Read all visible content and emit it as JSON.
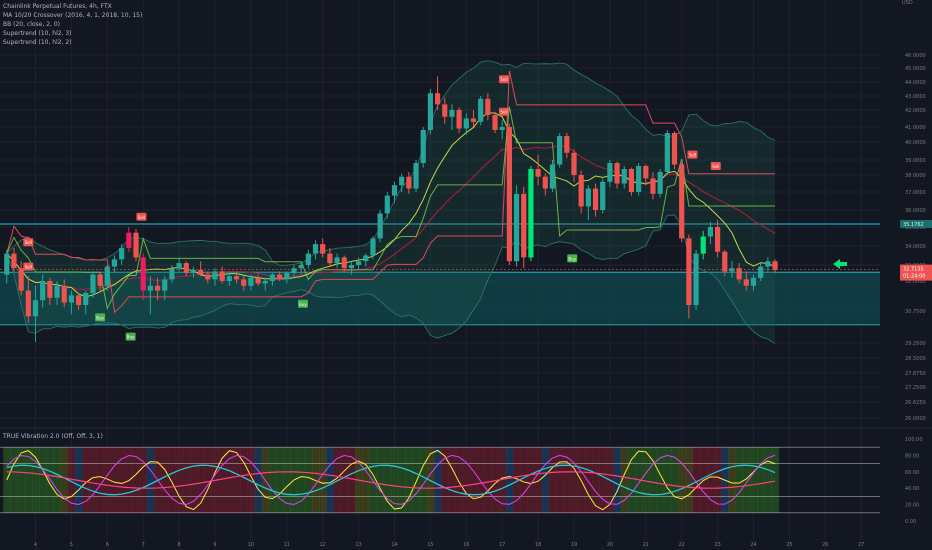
{
  "legend": {
    "symbol": "Chainlink Perpetual Futures, 4h, FTX",
    "lines": [
      "MA 10/20 Crossover (2016, 4, 1, 2018, 10, 15)",
      "BB (20, close, 2, 0)",
      "Supertrend (10, hl2, 3)",
      "Supertrend (10, hl2, 2)"
    ],
    "osc": "TRUE Vibration 2.0 (Off, Off, 3, 1)"
  },
  "currency": "USD",
  "colors": {
    "background": "#131722",
    "up": "#26a69a",
    "down": "#ef5350",
    "signal_green": "#00e676",
    "signal_magenta": "#e91e63",
    "zone": "#0f4a4e",
    "zone_line": "#26c6da",
    "arrow": "#00e676"
  },
  "chart_data": [
    {
      "type": "candlestick",
      "y_ticks": [
        "46.0000",
        "45.0000",
        "44.0000",
        "43.0000",
        "42.0000",
        "41.0000",
        "40.0000",
        "39.0000",
        "38.0000",
        "37.0000",
        "36.0000",
        "35.0000",
        "34.0000",
        "33.0000",
        "32.0000",
        "30.7500",
        "29.2500",
        "28.5000",
        "27.8750",
        "27.2500",
        "26.6250",
        "26.0000"
      ],
      "x_ticks": [
        "4",
        "5",
        "6",
        "7",
        "8",
        "9",
        "10",
        "11",
        "12",
        "13",
        "14",
        "15",
        "16",
        "17",
        "18",
        "19",
        "20",
        "21",
        "22",
        "23",
        "24",
        "25",
        "26",
        "27"
      ],
      "price_labels": {
        "resistance": "35.1762",
        "last": "32.7135",
        "countdown": "01:24:00"
      },
      "signals": [
        {
          "label": "Sell",
          "x": 3.8,
          "y": 34.2
        },
        {
          "label": "Sell",
          "x": 3.8,
          "y": 32.9
        },
        {
          "label": "Sell",
          "x": 6.95,
          "y": 35.6
        },
        {
          "label": "Sell",
          "x": 17.05,
          "y": 44.2
        },
        {
          "label": "Sell",
          "x": 17.05,
          "y": 41.9
        },
        {
          "label": "Sell",
          "x": 22.3,
          "y": 39.3
        },
        {
          "label": "Sell",
          "x": 22.95,
          "y": 38.6
        },
        {
          "label": "Buy",
          "x": 5.8,
          "y": 30.45
        },
        {
          "label": "Buy",
          "x": 6.65,
          "y": 29.55
        },
        {
          "label": "Buy",
          "x": 11.45,
          "y": 31.05
        },
        {
          "label": "Buy",
          "x": 18.95,
          "y": 33.35
        }
      ],
      "zone": {
        "top": 32.55,
        "bottom": 30.1
      },
      "resistance": 35.1762,
      "candles": [
        [
          3.2,
          32.4,
          33.8,
          31.9,
          33.6
        ],
        [
          3.4,
          33.6,
          33.9,
          32.6,
          32.8
        ],
        [
          3.6,
          32.8,
          33.2,
          31.4,
          31.6
        ],
        [
          3.8,
          31.6,
          32.3,
          30.2,
          30.5
        ],
        [
          4.0,
          30.5,
          31.8,
          29.3,
          31.2
        ],
        [
          4.2,
          31.2,
          32.4,
          30.9,
          32.0
        ],
        [
          4.4,
          32.0,
          32.2,
          31.0,
          31.3
        ],
        [
          4.6,
          31.3,
          32.0,
          31.0,
          31.8
        ],
        [
          4.8,
          31.8,
          32.1,
          30.9,
          31.1
        ],
        [
          5.0,
          31.1,
          31.6,
          30.6,
          31.4
        ],
        [
          5.2,
          31.4,
          31.5,
          30.8,
          31.0
        ],
        [
          5.4,
          31.0,
          31.6,
          30.6,
          31.5
        ],
        [
          5.6,
          31.5,
          32.6,
          31.3,
          32.4
        ],
        [
          5.8,
          32.4,
          32.6,
          31.6,
          31.8
        ],
        [
          6.0,
          31.8,
          33.0,
          31.6,
          32.9
        ],
        [
          6.2,
          32.9,
          33.5,
          32.5,
          33.3
        ],
        [
          6.4,
          33.3,
          34.1,
          33.0,
          33.9
        ],
        [
          6.6,
          33.9,
          35.0,
          33.7,
          34.7
        ],
        [
          6.8,
          34.7,
          34.9,
          33.2,
          33.4
        ],
        [
          7.0,
          33.4,
          33.6,
          31.2,
          31.6
        ],
        [
          7.2,
          31.6,
          32.3,
          30.6,
          31.8
        ],
        [
          7.4,
          31.8,
          32.2,
          31.2,
          31.6
        ],
        [
          7.6,
          31.6,
          32.3,
          31.2,
          32.1
        ],
        [
          7.8,
          32.1,
          33.0,
          31.9,
          32.8
        ],
        [
          8.0,
          32.8,
          33.4,
          32.6,
          33.1
        ],
        [
          8.2,
          33.1,
          33.2,
          32.3,
          32.5
        ],
        [
          8.4,
          32.5,
          32.9,
          32.2,
          32.7
        ],
        [
          8.6,
          32.7,
          33.2,
          32.3,
          32.4
        ],
        [
          8.8,
          32.4,
          32.6,
          31.9,
          32.1
        ],
        [
          9.0,
          32.1,
          32.8,
          31.8,
          32.6
        ],
        [
          9.2,
          32.6,
          32.9,
          31.9,
          32.0
        ],
        [
          9.4,
          32.0,
          32.5,
          31.8,
          32.3
        ],
        [
          9.6,
          32.3,
          32.6,
          31.9,
          32.1
        ],
        [
          9.8,
          32.1,
          32.3,
          31.6,
          31.8
        ],
        [
          10.0,
          31.8,
          32.4,
          31.6,
          32.2
        ],
        [
          10.2,
          32.2,
          32.4,
          31.8,
          31.9
        ],
        [
          10.4,
          31.9,
          32.2,
          31.6,
          32.0
        ],
        [
          10.6,
          32.0,
          32.5,
          31.8,
          32.4
        ],
        [
          10.8,
          32.4,
          32.6,
          32.0,
          32.1
        ],
        [
          11.0,
          32.1,
          32.6,
          31.9,
          32.5
        ],
        [
          11.2,
          32.5,
          33.0,
          32.2,
          32.8
        ],
        [
          11.4,
          32.8,
          33.2,
          32.4,
          33.0
        ],
        [
          11.6,
          33.0,
          33.8,
          32.8,
          33.6
        ],
        [
          11.8,
          33.6,
          34.3,
          33.3,
          34.1
        ],
        [
          12.0,
          34.1,
          34.4,
          33.4,
          33.6
        ],
        [
          12.2,
          33.6,
          33.9,
          32.9,
          33.1
        ],
        [
          12.4,
          33.1,
          33.6,
          32.8,
          33.4
        ],
        [
          12.6,
          33.4,
          33.5,
          32.6,
          32.8
        ],
        [
          12.8,
          32.8,
          33.2,
          32.4,
          33.0
        ],
        [
          13.0,
          33.0,
          33.4,
          32.7,
          33.2
        ],
        [
          13.2,
          33.2,
          33.6,
          32.9,
          33.5
        ],
        [
          13.4,
          33.5,
          34.5,
          33.3,
          34.4
        ],
        [
          13.6,
          34.4,
          36.0,
          34.2,
          35.8
        ],
        [
          13.8,
          35.8,
          37.0,
          35.5,
          36.8
        ],
        [
          14.0,
          36.8,
          37.6,
          36.4,
          37.4
        ],
        [
          14.2,
          37.4,
          38.1,
          37.0,
          37.9
        ],
        [
          14.4,
          37.9,
          38.2,
          36.9,
          37.2
        ],
        [
          14.6,
          37.2,
          39.0,
          37.0,
          38.8
        ],
        [
          14.8,
          38.8,
          41.0,
          38.5,
          40.8
        ],
        [
          15.0,
          40.8,
          43.5,
          40.5,
          43.2
        ],
        [
          15.2,
          43.2,
          44.4,
          42.0,
          42.4
        ],
        [
          15.4,
          42.4,
          42.9,
          41.2,
          41.6
        ],
        [
          15.6,
          41.6,
          42.4,
          40.8,
          42.0
        ],
        [
          15.8,
          42.0,
          42.2,
          40.6,
          40.9
        ],
        [
          16.0,
          40.9,
          41.8,
          40.5,
          41.5
        ],
        [
          16.2,
          41.5,
          42.0,
          41.0,
          41.3
        ],
        [
          16.4,
          41.3,
          43.0,
          41.1,
          42.8
        ],
        [
          16.6,
          42.8,
          43.2,
          41.4,
          41.7
        ],
        [
          16.8,
          41.7,
          41.9,
          40.6,
          40.8
        ],
        [
          17.0,
          40.8,
          41.4,
          40.2,
          41.0
        ],
        [
          17.2,
          41.0,
          41.2,
          33.0,
          33.2
        ],
        [
          17.4,
          33.2,
          37.4,
          32.9,
          36.9
        ],
        [
          17.6,
          36.9,
          37.3,
          32.8,
          33.4
        ],
        [
          17.8,
          33.4,
          38.6,
          33.2,
          38.4
        ],
        [
          18.0,
          38.4,
          39.3,
          37.4,
          37.9
        ],
        [
          18.2,
          37.9,
          38.1,
          36.8,
          37.2
        ],
        [
          18.4,
          37.2,
          39.0,
          37.0,
          38.7
        ],
        [
          18.6,
          38.7,
          40.6,
          38.5,
          40.4
        ],
        [
          18.8,
          40.4,
          40.6,
          39.1,
          39.4
        ],
        [
          19.0,
          39.4,
          39.6,
          37.6,
          38.0
        ],
        [
          19.2,
          38.0,
          38.3,
          35.8,
          36.2
        ],
        [
          19.4,
          36.2,
          37.4,
          35.4,
          37.2
        ],
        [
          19.6,
          37.2,
          37.5,
          35.6,
          36.0
        ],
        [
          19.8,
          36.0,
          37.8,
          35.8,
          37.6
        ],
        [
          20.0,
          37.6,
          39.0,
          37.3,
          38.8
        ],
        [
          20.2,
          38.8,
          38.9,
          37.2,
          37.5
        ],
        [
          20.4,
          37.5,
          38.6,
          37.2,
          38.4
        ],
        [
          20.6,
          38.4,
          38.5,
          36.8,
          37.0
        ],
        [
          20.8,
          37.0,
          38.8,
          36.8,
          38.6
        ],
        [
          21.0,
          38.6,
          38.7,
          37.4,
          37.8
        ],
        [
          21.2,
          37.8,
          38.2,
          36.6,
          36.9
        ],
        [
          21.4,
          36.9,
          38.4,
          36.7,
          38.2
        ],
        [
          21.6,
          38.2,
          40.8,
          38.0,
          40.6
        ],
        [
          21.8,
          40.6,
          40.7,
          38.4,
          38.7
        ],
        [
          22.0,
          38.7,
          38.8,
          34.2,
          34.4
        ],
        [
          22.2,
          34.4,
          34.6,
          30.4,
          31.0
        ],
        [
          22.4,
          31.0,
          33.8,
          30.8,
          33.6
        ],
        [
          22.6,
          33.6,
          34.8,
          33.3,
          34.5
        ],
        [
          22.8,
          34.5,
          35.3,
          34.1,
          35.0
        ],
        [
          23.0,
          35.0,
          35.4,
          33.4,
          33.7
        ],
        [
          23.2,
          33.7,
          33.8,
          32.3,
          32.6
        ],
        [
          23.4,
          32.6,
          33.2,
          32.2,
          32.8
        ],
        [
          23.6,
          32.8,
          33.1,
          31.9,
          32.1
        ],
        [
          23.8,
          32.1,
          32.6,
          31.6,
          31.8
        ],
        [
          24.0,
          31.8,
          32.4,
          31.6,
          32.2
        ],
        [
          24.2,
          32.2,
          33.1,
          32.0,
          32.9
        ],
        [
          24.4,
          32.9,
          33.4,
          32.6,
          33.2
        ],
        [
          24.6,
          33.2,
          33.3,
          32.5,
          32.7
        ]
      ]
    },
    {
      "type": "line",
      "title": "TRUE Vibration 2.0 (Off, Off, 3, 1)",
      "y_ticks": [
        "100.00",
        "80.00",
        "60.00",
        "40.00",
        "20.00",
        "0.00"
      ],
      "ylim": [
        0,
        100
      ],
      "levels": [
        90,
        70,
        30,
        10
      ]
    }
  ]
}
